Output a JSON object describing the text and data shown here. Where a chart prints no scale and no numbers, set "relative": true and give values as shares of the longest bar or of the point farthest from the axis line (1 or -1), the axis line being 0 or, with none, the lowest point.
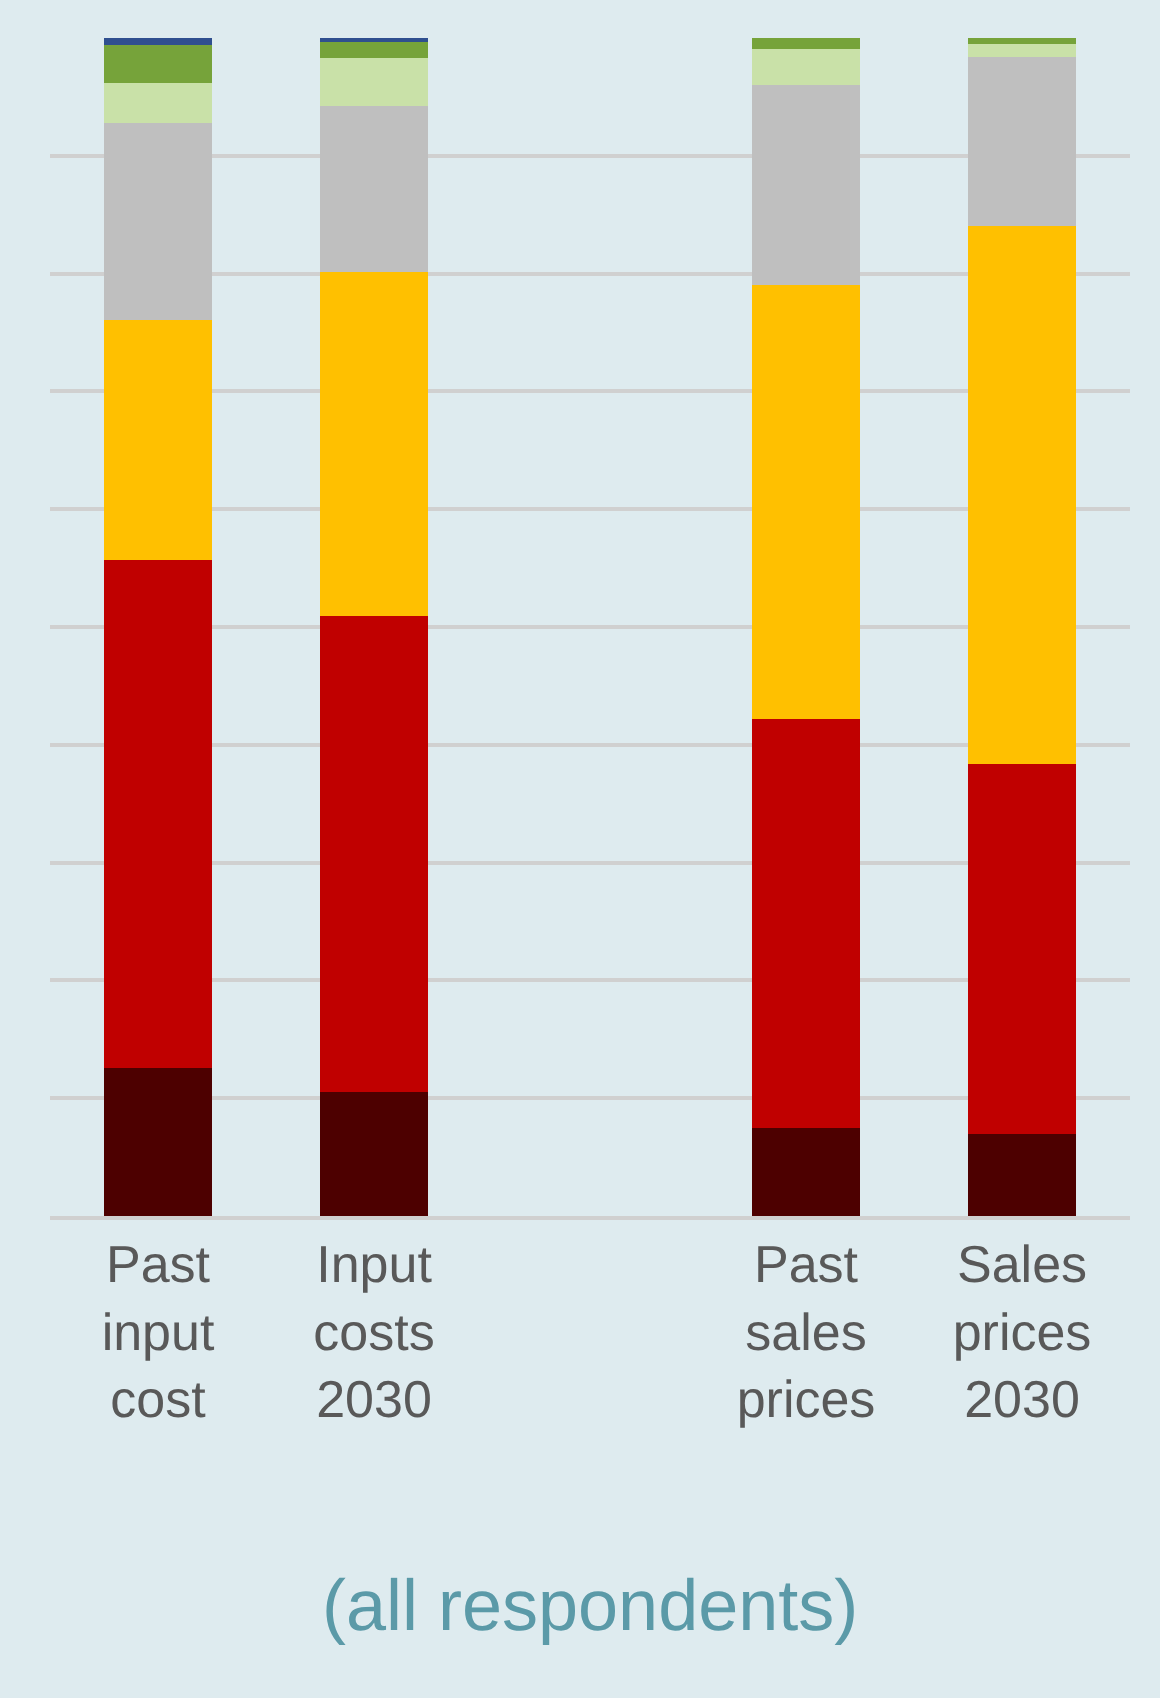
{
  "chart_data": {
    "type": "bar",
    "stacked": true,
    "relative": true,
    "grid": "y",
    "categories": [
      "Past input cost",
      "Input costs 2030",
      null,
      "Past sales prices",
      "Sales prices 2030"
    ],
    "series": [
      {
        "color": "#4d0000",
        "values": [
          0.126,
          0.105,
          null,
          0.075,
          0.07
        ]
      },
      {
        "color": "#c00000",
        "values": [
          0.431,
          0.404,
          null,
          0.347,
          0.314
        ]
      },
      {
        "color": "#ffc000",
        "values": [
          0.204,
          0.292,
          null,
          0.368,
          0.456
        ]
      },
      {
        "color": "#bfbfbf",
        "values": [
          0.167,
          0.141,
          null,
          0.17,
          0.144
        ]
      },
      {
        "color": "#c9e1a8",
        "values": [
          0.034,
          0.041,
          null,
          0.031,
          0.011
        ]
      },
      {
        "color": "#76a33a",
        "values": [
          0.032,
          0.014,
          null,
          0.009,
          0.005
        ]
      },
      {
        "color": "#2f4f8f",
        "values": [
          0.006,
          0.003,
          null,
          null,
          null
        ]
      }
    ],
    "annotations": [
      "(all respondents)"
    ]
  }
}
